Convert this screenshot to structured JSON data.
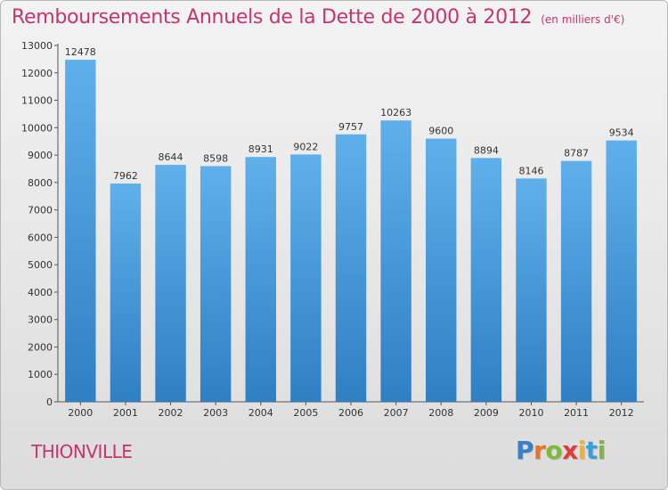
{
  "chart_data": {
    "type": "bar",
    "title": "Remboursements Annuels de la Dette de 2000 à 2012",
    "subtitle": "(en milliers d'€)",
    "categories": [
      "2000",
      "2001",
      "2002",
      "2003",
      "2004",
      "2005",
      "2006",
      "2007",
      "2008",
      "2009",
      "2010",
      "2011",
      "2012"
    ],
    "values": [
      12478,
      7962,
      8644,
      8598,
      8931,
      9022,
      9757,
      10263,
      9600,
      8894,
      8146,
      8787,
      9534
    ],
    "data_labels": [
      "12478",
      "7962",
      "8644",
      "8598",
      "8931",
      "9022",
      "9757",
      "10263",
      "9600",
      "8894",
      "8146",
      "8787",
      "9534"
    ],
    "ylim": [
      0,
      13000
    ],
    "yticks": [
      0,
      1000,
      2000,
      3000,
      4000,
      5000,
      6000,
      7000,
      8000,
      9000,
      10000,
      11000,
      12000,
      13000
    ],
    "ytick_labels": [
      "0",
      "1000",
      "2000",
      "3000",
      "4000",
      "5000",
      "6000",
      "7000",
      "8000",
      "9000",
      "10000",
      "11000",
      "12000",
      "13000"
    ],
    "grid": false,
    "legend": "none",
    "colors": {
      "bar_top": "#5fb0ea",
      "bar_bottom": "#2f7fc4",
      "title": "#c8336e",
      "axis": "#555555"
    }
  },
  "footer": {
    "city": "THIONVILLE",
    "logo_letters": [
      {
        "char": "P",
        "color": "#3a7fc9"
      },
      {
        "char": "r",
        "color": "#e8742a"
      },
      {
        "char": "o",
        "color": "#7fb83a"
      },
      {
        "char": "x",
        "color": "#e03b3b"
      },
      {
        "char": "i",
        "color": "#f2b521"
      },
      {
        "char": "t",
        "color": "#3a9ed9"
      },
      {
        "char": "i",
        "color": "#7fb83a"
      }
    ]
  }
}
